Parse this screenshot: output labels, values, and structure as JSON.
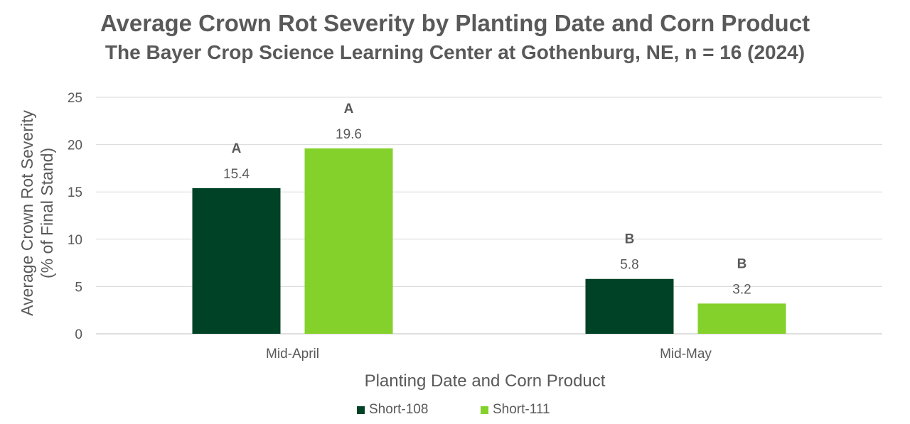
{
  "chart_data": {
    "type": "bar",
    "title": "Average Crown Rot Severity by Planting Date and Corn Product",
    "subtitle": "The Bayer Crop Science Learning Center at Gothenburg, NE, n = 16 (2024)",
    "xlabel": "Planting Date and Corn Product",
    "ylabel": "Average Crown Rot Severity",
    "ylabel2": "(% of Final Stand)",
    "categories": [
      "Mid-April",
      "Mid-May"
    ],
    "ylim": [
      0,
      25
    ],
    "yticks": [
      0,
      5,
      10,
      15,
      20,
      25
    ],
    "grid": true,
    "legend_position": "bottom",
    "series": [
      {
        "name": "Short-108",
        "color": "#004225",
        "values": [
          15.4,
          5.8
        ],
        "value_labels": [
          "15.4",
          "5.8"
        ],
        "letters": [
          "A",
          "B"
        ]
      },
      {
        "name": "Short-111",
        "color": "#84D12B",
        "values": [
          19.6,
          3.2
        ],
        "value_labels": [
          "19.6",
          "3.2"
        ],
        "letters": [
          "A",
          "B"
        ]
      }
    ]
  }
}
